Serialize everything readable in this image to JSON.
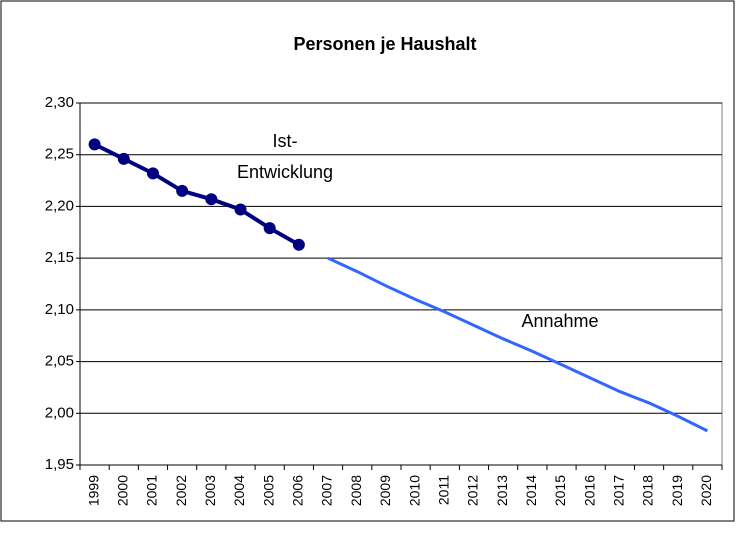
{
  "chart_data": {
    "type": "line",
    "title": "Personen je Haushalt",
    "categories": [
      "1999",
      "2000",
      "2001",
      "2002",
      "2003",
      "2004",
      "2005",
      "2006",
      "2007",
      "2008",
      "2009",
      "2010",
      "2011",
      "2012",
      "2013",
      "2014",
      "2015",
      "2016",
      "2017",
      "2018",
      "2019",
      "2020"
    ],
    "series": [
      {
        "name": "Ist-Entwicklung",
        "color": "#000080",
        "markers": true,
        "values": [
          2.26,
          2.246,
          2.232,
          2.215,
          2.207,
          2.197,
          2.179,
          2.163,
          null,
          null,
          null,
          null,
          null,
          null,
          null,
          null,
          null,
          null,
          null,
          null,
          null,
          null
        ]
      },
      {
        "name": "Annahme",
        "color": "#3366ff",
        "markers": false,
        "values": [
          null,
          null,
          null,
          null,
          null,
          null,
          null,
          null,
          2.15,
          2.137,
          2.123,
          2.11,
          2.098,
          2.085,
          2.072,
          2.06,
          2.047,
          2.034,
          2.021,
          2.01,
          1.997,
          1.983
        ]
      }
    ],
    "ylim": [
      1.95,
      2.3
    ],
    "yticks": [
      {
        "value": 1.95,
        "label": "1,95"
      },
      {
        "value": 2.0,
        "label": "2,00"
      },
      {
        "value": 2.05,
        "label": "2,05"
      },
      {
        "value": 2.1,
        "label": "2,10"
      },
      {
        "value": 2.15,
        "label": "2,15"
      },
      {
        "value": 2.2,
        "label": "2,20"
      },
      {
        "value": 2.25,
        "label": "2,25"
      },
      {
        "value": 2.3,
        "label": "2,30"
      }
    ],
    "grid": true
  }
}
